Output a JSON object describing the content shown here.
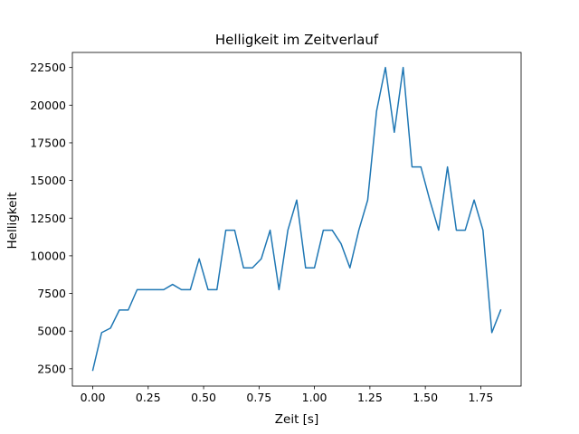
{
  "chart_data": {
    "type": "line",
    "title": "Helligkeit im Zeitverlauf",
    "xlabel": "Zeit [s]",
    "ylabel": "Helligkeit",
    "xlim": [
      -0.092,
      1.932
    ],
    "ylim": [
      1350,
      23500
    ],
    "xticks": [
      0.0,
      0.25,
      0.5,
      0.75,
      1.0,
      1.25,
      1.5,
      1.75
    ],
    "xtick_labels": [
      "0.00",
      "0.25",
      "0.50",
      "0.75",
      "1.00",
      "1.25",
      "1.50",
      "1.75"
    ],
    "yticks": [
      2500,
      5000,
      7500,
      10000,
      12500,
      15000,
      17500,
      20000,
      22500
    ],
    "ytick_labels": [
      "2500",
      "5000",
      "7500",
      "10000",
      "12500",
      "15000",
      "17500",
      "20000",
      "22500"
    ],
    "grid": false,
    "series": [
      {
        "color": "#1f77b4",
        "x": [
          0.0,
          0.04,
          0.08,
          0.12,
          0.16,
          0.2,
          0.24,
          0.28,
          0.32,
          0.36,
          0.4,
          0.44,
          0.48,
          0.52,
          0.56,
          0.6,
          0.64,
          0.68,
          0.72,
          0.76,
          0.8,
          0.84,
          0.88,
          0.92,
          0.96,
          1.0,
          1.04,
          1.08,
          1.12,
          1.16,
          1.2,
          1.24,
          1.28,
          1.32,
          1.36,
          1.4,
          1.44,
          1.48,
          1.52,
          1.56,
          1.6,
          1.64,
          1.68,
          1.72,
          1.76,
          1.8,
          1.84
        ],
        "y": [
          2400,
          4900,
          5200,
          6400,
          6400,
          7750,
          7750,
          7750,
          7750,
          8100,
          7750,
          7750,
          9800,
          7750,
          7750,
          11700,
          11700,
          9200,
          9200,
          9800,
          11700,
          7750,
          11700,
          13700,
          9200,
          9200,
          11700,
          11700,
          10800,
          9200,
          11700,
          13700,
          19600,
          22500,
          18200,
          22500,
          15900,
          15900,
          13700,
          11700,
          15900,
          11700,
          11700,
          13700,
          11700,
          4900,
          6400
        ]
      }
    ]
  }
}
